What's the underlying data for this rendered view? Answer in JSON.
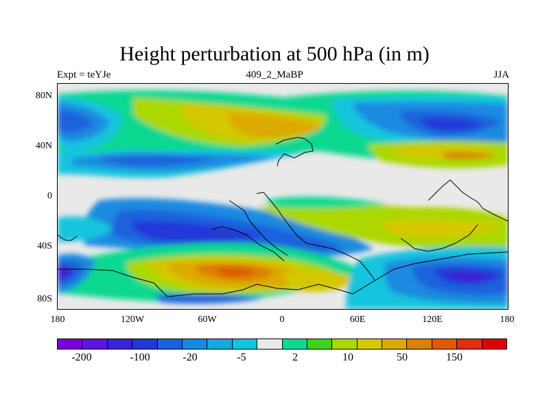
{
  "title": "Height perturbation at 500 hPa (in m)",
  "subtitle_left": "Expt = teYJe",
  "subtitle_center": "409_2_MaBP",
  "subtitle_right": "JJA",
  "lat_labels": [
    "80N",
    "40N",
    "0",
    "40S",
    "80S"
  ],
  "lon_labels": [
    "180",
    "120W",
    "60W",
    "0",
    "60E",
    "120E",
    "180"
  ],
  "colorbar": {
    "colors": [
      "#7a00d9",
      "#5a16e0",
      "#3a22d6",
      "#2238d8",
      "#1a62dc",
      "#1a8ae0",
      "#14aadd",
      "#12c4de",
      "#e9e9e9",
      "#10d890",
      "#40d020",
      "#aad800",
      "#d4c800",
      "#dcaa00",
      "#dc8000",
      "#dc5a00",
      "#e03010",
      "#e00000"
    ],
    "labels": [
      "-200",
      "-100",
      "-20",
      "-5",
      "2",
      "10",
      "50",
      "150"
    ]
  },
  "palette": {
    "neutral": "#e9e9e9",
    "green": "#10d890",
    "lime": "#aad800",
    "yellow": "#d4c800",
    "orange": "#dcaa00",
    "dkorange": "#dc8000",
    "red": "#dc5a00",
    "cyan": "#12c4de",
    "skyblue": "#1a8ae0",
    "blue": "#1a62dc",
    "dkblue": "#2238d8",
    "indigo": "#3a22d6",
    "purple": "#5a16e0"
  }
}
